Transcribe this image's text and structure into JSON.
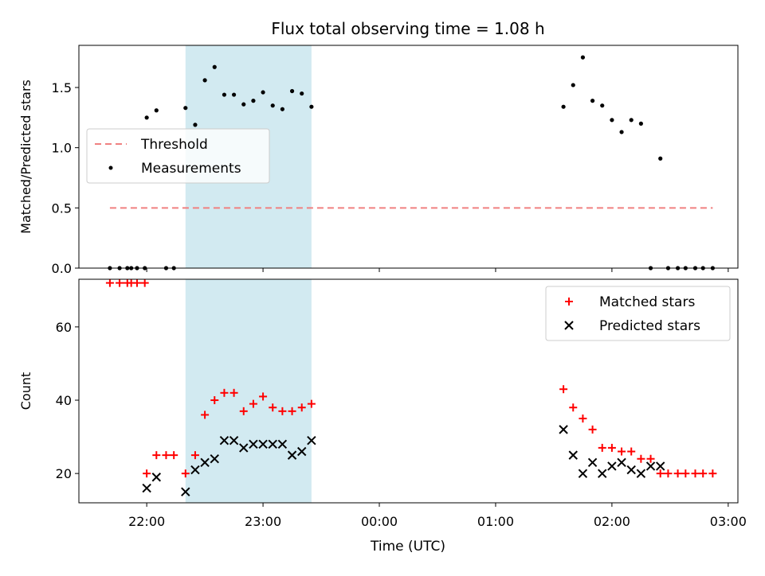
{
  "title": "Flux total observing time = 1.08 h",
  "colors": {
    "threshold": "#f08080",
    "measurement": "#000000",
    "matched": "#ff0000",
    "predicted": "#000000",
    "shade": "#add8e6"
  },
  "chart_data": [
    {
      "type": "scatter",
      "ylabel": "Matched/Predicted stars",
      "ylim": [
        0,
        1.85
      ],
      "yticks": [
        0.0,
        0.5,
        1.0,
        1.5
      ],
      "ytick_labels": [
        "0.0",
        "0.5",
        "1.0",
        "1.5"
      ],
      "xlim": [
        "21:25",
        "03:05"
      ],
      "xticks": [
        "22:00",
        "23:00",
        "00:00",
        "01:00",
        "02:00",
        "03:00"
      ],
      "shaded_span": [
        "22:20",
        "23:25"
      ],
      "legend_position": "center-left",
      "threshold": {
        "name": "Threshold",
        "value": 0.5,
        "x": [
          "21:41",
          "02:52"
        ]
      },
      "series": [
        {
          "name": "Measurements",
          "x": [
            "21:41",
            "21:46",
            "21:50",
            "21:52",
            "21:55",
            "21:59",
            "22:00",
            "22:05",
            "22:10",
            "22:14",
            "22:20",
            "22:25",
            "22:30",
            "22:35",
            "22:40",
            "22:45",
            "22:50",
            "22:55",
            "23:00",
            "23:05",
            "23:10",
            "23:15",
            "23:20",
            "23:25",
            "01:35",
            "01:40",
            "01:45",
            "01:50",
            "01:55",
            "02:00",
            "02:05",
            "02:10",
            "02:15",
            "02:20",
            "02:25",
            "02:29",
            "02:34",
            "02:38",
            "02:43",
            "02:47",
            "02:52"
          ],
          "y": [
            0,
            0,
            0,
            0,
            0,
            0,
            1.25,
            1.31,
            0,
            0,
            1.33,
            1.19,
            1.56,
            1.67,
            1.44,
            1.44,
            1.36,
            1.39,
            1.46,
            1.35,
            1.32,
            1.47,
            1.45,
            1.34,
            1.34,
            1.52,
            1.75,
            1.39,
            1.35,
            1.23,
            1.13,
            1.23,
            1.2,
            0,
            0.91,
            0,
            0,
            0,
            0,
            0,
            0
          ]
        }
      ]
    },
    {
      "type": "scatter",
      "xlabel": "Time (UTC)",
      "ylabel": "Count",
      "ylim": [
        12,
        73
      ],
      "yticks": [
        20,
        40,
        60
      ],
      "ytick_labels": [
        "20",
        "40",
        "60"
      ],
      "xlim": [
        "21:25",
        "03:05"
      ],
      "xticks": [
        "22:00",
        "23:00",
        "00:00",
        "01:00",
        "02:00",
        "03:00"
      ],
      "xtick_labels": [
        "22:00",
        "23:00",
        "00:00",
        "01:00",
        "02:00",
        "03:00"
      ],
      "shaded_span": [
        "22:20",
        "23:25"
      ],
      "legend_position": "top-right",
      "series": [
        {
          "name": "Matched stars",
          "marker": "plus",
          "x": [
            "21:41",
            "21:46",
            "21:50",
            "21:52",
            "21:55",
            "21:59",
            "22:00",
            "22:05",
            "22:10",
            "22:14",
            "22:20",
            "22:25",
            "22:30",
            "22:35",
            "22:40",
            "22:45",
            "22:50",
            "22:55",
            "23:00",
            "23:05",
            "23:10",
            "23:15",
            "23:20",
            "23:25",
            "01:35",
            "01:40",
            "01:45",
            "01:50",
            "01:55",
            "02:00",
            "02:05",
            "02:10",
            "02:15",
            "02:20",
            "02:25",
            "02:29",
            "02:34",
            "02:38",
            "02:43",
            "02:47",
            "02:52"
          ],
          "y": [
            72,
            72,
            72,
            72,
            72,
            72,
            20,
            25,
            25,
            25,
            20,
            25,
            36,
            40,
            42,
            42,
            37,
            39,
            41,
            38,
            37,
            37,
            38,
            39,
            43,
            38,
            35,
            32,
            27,
            27,
            26,
            26,
            24,
            24,
            20,
            20,
            20,
            20,
            20,
            20,
            20
          ]
        },
        {
          "name": "Predicted stars",
          "marker": "x",
          "x": [
            "22:00",
            "22:05",
            "22:20",
            "22:25",
            "22:30",
            "22:35",
            "22:40",
            "22:45",
            "22:50",
            "22:55",
            "23:00",
            "23:05",
            "23:10",
            "23:15",
            "23:20",
            "23:25",
            "01:35",
            "01:40",
            "01:45",
            "01:50",
            "01:55",
            "02:00",
            "02:05",
            "02:10",
            "02:15",
            "02:20",
            "02:25"
          ],
          "y": [
            16,
            19,
            15,
            21,
            23,
            24,
            29,
            29,
            27,
            28,
            28,
            28,
            28,
            25,
            26,
            29,
            32,
            25,
            20,
            23,
            20,
            22,
            23,
            21,
            20,
            22,
            22
          ]
        }
      ]
    }
  ]
}
